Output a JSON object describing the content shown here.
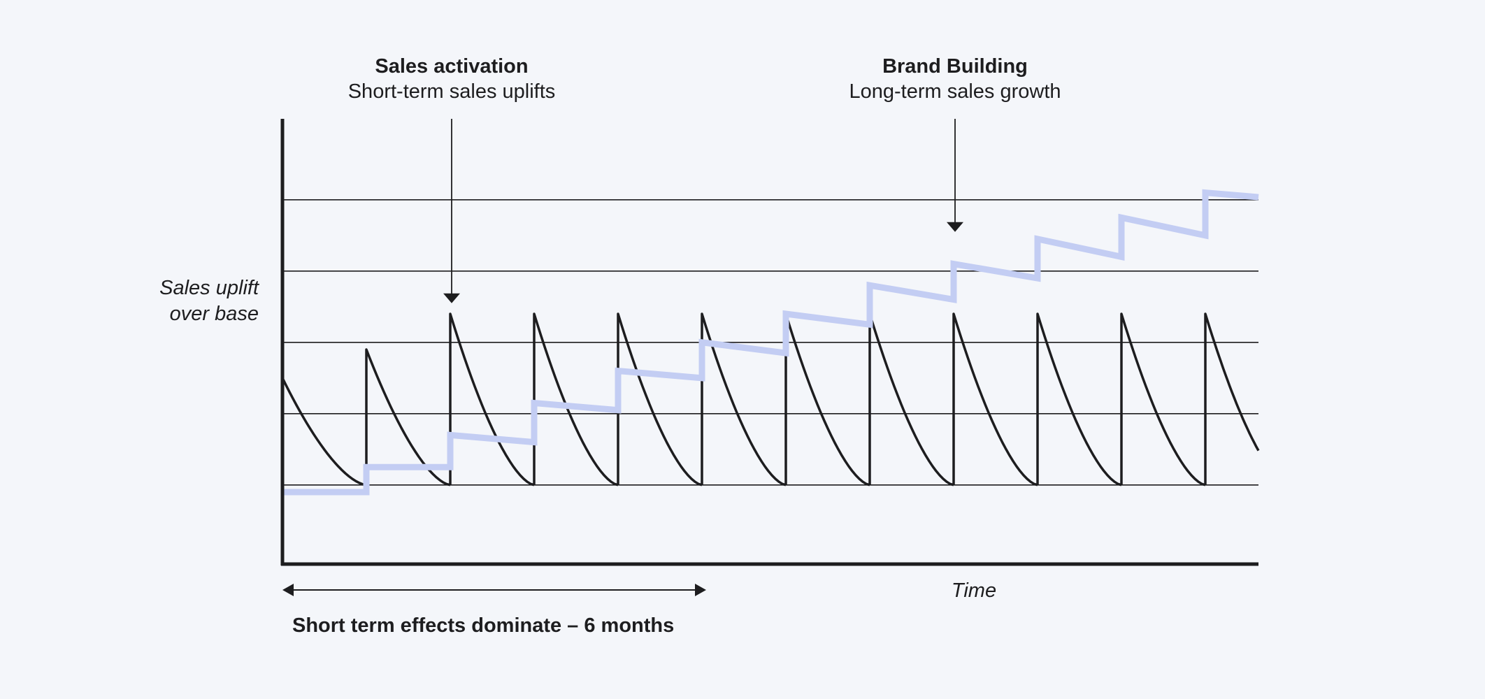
{
  "chart_data": {
    "type": "line",
    "title": "",
    "xlabel": "Time",
    "ylabel": "Sales uplift over base",
    "ylabel_lines": [
      "Sales uplift",
      "over base"
    ],
    "grid": "horizontal",
    "legend": "none",
    "xlim": [
      0,
      11.6
    ],
    "ylim": [
      0,
      5
    ],
    "series": [
      {
        "color": "#1d1d1f",
        "description": "Repeated short-term spikes decaying back to base",
        "spikes": [
          {
            "x": 0,
            "peak": 2.6
          },
          {
            "x": 1,
            "peak": 3.0
          },
          {
            "x": 2,
            "peak": 3.5
          },
          {
            "x": 3,
            "peak": 3.5
          },
          {
            "x": 4,
            "peak": 3.5
          },
          {
            "x": 5,
            "peak": 3.5
          },
          {
            "x": 6,
            "peak": 3.5
          },
          {
            "x": 7,
            "peak": 3.5
          },
          {
            "x": 8,
            "peak": 3.5
          },
          {
            "x": 9,
            "peak": 3.5
          },
          {
            "x": 10,
            "peak": 3.5
          },
          {
            "x": 11,
            "peak": 3.5
          }
        ],
        "base": 1.1
      },
      {
        "color": "#c3cdf3",
        "description": "Step-wise long-term growth",
        "steps": [
          {
            "x0": 0,
            "y0": 1.0,
            "y1": 1.0
          },
          {
            "x0": 1,
            "y0": 1.35,
            "y1": 1.35
          },
          {
            "x0": 2,
            "y0": 1.8,
            "y1": 1.7
          },
          {
            "x0": 3,
            "y0": 2.25,
            "y1": 2.15
          },
          {
            "x0": 4,
            "y0": 2.7,
            "y1": 2.6
          },
          {
            "x0": 5,
            "y0": 3.1,
            "y1": 2.95
          },
          {
            "x0": 6,
            "y0": 3.5,
            "y1": 3.35
          },
          {
            "x0": 7,
            "y0": 3.9,
            "y1": 3.7
          },
          {
            "x0": 8,
            "y0": 4.2,
            "y1": 4.0
          },
          {
            "x0": 9,
            "y0": 4.55,
            "y1": 4.3
          },
          {
            "x0": 10,
            "y0": 4.85,
            "y1": 4.6
          },
          {
            "x0": 11,
            "y0": 5.2,
            "y1": 5.1
          }
        ]
      }
    ],
    "annotations": [
      {
        "title": "Sales activation",
        "subtitle": "Short-term sales uplifts",
        "x": 2,
        "arrow_to_y": 3.65
      },
      {
        "title": "Brand Building",
        "subtitle": "Long-term sales growth",
        "x": 8,
        "arrow_to_y": 4.65
      }
    ],
    "span": {
      "label": "Short term effects dominate – 6 months",
      "x_from": 0,
      "x_to": 5
    }
  }
}
